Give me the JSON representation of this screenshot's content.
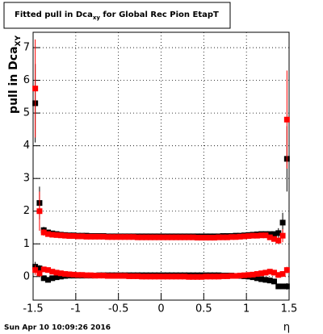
{
  "chart_data": {
    "type": "errorbar",
    "title": [
      "Fitted pull in Dca",
      "xy",
      " for Global Rec Pion EtapT"
    ],
    "y_label": [
      "pull in Dca",
      "XY"
    ],
    "x_label": "η",
    "footer": "Sun Apr 10 10:09:26 2016",
    "xlim": [
      -1.5,
      1.5
    ],
    "ylim": [
      -0.72,
      7.47
    ],
    "xticks": [
      -1.5,
      -1,
      -0.5,
      0,
      0.5,
      1,
      1.5
    ],
    "yticks": [
      0,
      1,
      2,
      3,
      4,
      5,
      6,
      7
    ],
    "grid": true,
    "x": [
      -1.475,
      -1.425,
      -1.375,
      -1.325,
      -1.275,
      -1.225,
      -1.175,
      -1.125,
      -1.075,
      -1.025,
      -0.975,
      -0.925,
      -0.875,
      -0.825,
      -0.775,
      -0.725,
      -0.675,
      -0.625,
      -0.575,
      -0.525,
      -0.475,
      -0.425,
      -0.375,
      -0.325,
      -0.275,
      -0.225,
      -0.175,
      -0.125,
      -0.075,
      -0.025,
      0.025,
      0.075,
      0.125,
      0.175,
      0.225,
      0.275,
      0.325,
      0.375,
      0.425,
      0.475,
      0.525,
      0.575,
      0.625,
      0.675,
      0.725,
      0.775,
      0.825,
      0.875,
      0.925,
      0.975,
      1.025,
      1.075,
      1.125,
      1.175,
      1.225,
      1.275,
      1.325,
      1.375,
      1.425,
      1.475
    ],
    "series": [
      {
        "color": "#000000",
        "values": [
          5.3,
          2.25,
          1.42,
          1.35,
          1.32,
          1.3,
          1.28,
          1.27,
          1.26,
          1.26,
          1.25,
          1.25,
          1.25,
          1.24,
          1.24,
          1.24,
          1.24,
          1.23,
          1.23,
          1.23,
          1.23,
          1.23,
          1.23,
          1.23,
          1.23,
          1.23,
          1.23,
          1.23,
          1.23,
          1.23,
          1.23,
          1.23,
          1.23,
          1.23,
          1.23,
          1.23,
          1.23,
          1.23,
          1.23,
          1.23,
          1.23,
          1.23,
          1.23,
          1.23,
          1.24,
          1.24,
          1.24,
          1.25,
          1.25,
          1.26,
          1.27,
          1.28,
          1.29,
          1.3,
          1.3,
          1.3,
          1.3,
          1.33,
          1.65,
          3.6
        ],
        "errors": [
          1.2,
          0.5,
          0.1,
          0.08,
          0.04,
          0.04,
          0.04,
          0.04,
          0.04,
          0.04,
          0.04,
          0.04,
          0.04,
          0.04,
          0.04,
          0.04,
          0.04,
          0.04,
          0.04,
          0.04,
          0.04,
          0.04,
          0.04,
          0.04,
          0.04,
          0.04,
          0.04,
          0.04,
          0.04,
          0.04,
          0.04,
          0.04,
          0.04,
          0.04,
          0.04,
          0.04,
          0.04,
          0.04,
          0.04,
          0.04,
          0.04,
          0.04,
          0.04,
          0.04,
          0.04,
          0.04,
          0.04,
          0.04,
          0.04,
          0.04,
          0.04,
          0.04,
          0.04,
          0.04,
          0.04,
          0.04,
          0.08,
          0.15,
          0.3,
          1.0
        ]
      },
      {
        "color": "#ff0000",
        "values": [
          5.75,
          2.0,
          1.35,
          1.3,
          1.28,
          1.27,
          1.26,
          1.25,
          1.24,
          1.24,
          1.23,
          1.23,
          1.22,
          1.22,
          1.22,
          1.22,
          1.22,
          1.21,
          1.21,
          1.21,
          1.21,
          1.21,
          1.21,
          1.21,
          1.2,
          1.2,
          1.2,
          1.2,
          1.2,
          1.2,
          1.2,
          1.2,
          1.2,
          1.2,
          1.2,
          1.2,
          1.2,
          1.2,
          1.19,
          1.19,
          1.19,
          1.19,
          1.19,
          1.2,
          1.2,
          1.2,
          1.21,
          1.21,
          1.22,
          1.23,
          1.24,
          1.25,
          1.25,
          1.26,
          1.26,
          1.2,
          1.15,
          1.1,
          1.25,
          4.8
        ],
        "errors": [
          1.5,
          0.6,
          0.1,
          0.08,
          0.04,
          0.04,
          0.04,
          0.04,
          0.04,
          0.04,
          0.04,
          0.04,
          0.04,
          0.04,
          0.04,
          0.04,
          0.04,
          0.04,
          0.04,
          0.04,
          0.04,
          0.04,
          0.04,
          0.04,
          0.04,
          0.04,
          0.04,
          0.04,
          0.04,
          0.04,
          0.04,
          0.04,
          0.04,
          0.04,
          0.04,
          0.04,
          0.04,
          0.04,
          0.04,
          0.04,
          0.04,
          0.04,
          0.04,
          0.04,
          0.04,
          0.04,
          0.04,
          0.04,
          0.04,
          0.04,
          0.04,
          0.04,
          0.04,
          0.04,
          0.04,
          0.04,
          0.08,
          0.1,
          0.2,
          1.5
        ]
      },
      {
        "color": "#000000",
        "values": [
          0.3,
          0.25,
          -0.05,
          -0.1,
          -0.05,
          -0.02,
          0,
          0.02,
          0.03,
          0.03,
          0.03,
          0.03,
          0.03,
          0.03,
          0.03,
          0.04,
          0.04,
          0.04,
          0.04,
          0.04,
          0.04,
          0.04,
          0.04,
          0.04,
          0.04,
          0.04,
          0.04,
          0.04,
          0.04,
          0.04,
          0.04,
          0.04,
          0.04,
          0.04,
          0.04,
          0.04,
          0.04,
          0.04,
          0.04,
          0.04,
          0.04,
          0.04,
          0.04,
          0.04,
          0.03,
          0.03,
          0.03,
          0.02,
          0.02,
          0.01,
          0,
          -0.02,
          -0.05,
          -0.08,
          -0.1,
          -0.12,
          -0.15,
          -0.3,
          -0.3,
          -0.3
        ],
        "errors": [
          0.15,
          0.1,
          0.05,
          0.04,
          0.03,
          0.03,
          0.03,
          0.03,
          0.03,
          0.03,
          0.03,
          0.03,
          0.03,
          0.03,
          0.03,
          0.03,
          0.03,
          0.03,
          0.03,
          0.03,
          0.03,
          0.03,
          0.03,
          0.03,
          0.03,
          0.03,
          0.03,
          0.03,
          0.03,
          0.03,
          0.03,
          0.03,
          0.03,
          0.03,
          0.03,
          0.03,
          0.03,
          0.03,
          0.03,
          0.03,
          0.03,
          0.03,
          0.03,
          0.03,
          0.03,
          0.03,
          0.03,
          0.03,
          0.03,
          0.03,
          0.03,
          0.03,
          0.03,
          0.03,
          0.03,
          0.03,
          0.04,
          0.05,
          0.08,
          0.1
        ]
      },
      {
        "color": "#ff0000",
        "values": [
          0.2,
          0.1,
          0.22,
          0.2,
          0.15,
          0.12,
          0.1,
          0.08,
          0.07,
          0.06,
          0.05,
          0.05,
          0.04,
          0.04,
          0.03,
          0.03,
          0.03,
          0.02,
          0.02,
          0.02,
          0.02,
          0.02,
          0.01,
          0.01,
          0.01,
          0,
          0,
          0,
          0,
          0,
          0,
          0,
          0,
          0,
          0,
          0,
          -0.01,
          -0.01,
          -0.01,
          -0.01,
          0,
          0,
          0,
          0,
          0.01,
          0.01,
          0.02,
          0.02,
          0.03,
          0.04,
          0.05,
          0.06,
          0.08,
          0.1,
          0.12,
          0.15,
          0.12,
          0.05,
          0.08,
          0.2
        ],
        "errors": [
          0.15,
          0.1,
          0.05,
          0.04,
          0.03,
          0.03,
          0.03,
          0.03,
          0.03,
          0.03,
          0.03,
          0.03,
          0.03,
          0.03,
          0.03,
          0.03,
          0.03,
          0.03,
          0.03,
          0.03,
          0.03,
          0.03,
          0.03,
          0.03,
          0.03,
          0.03,
          0.03,
          0.03,
          0.03,
          0.03,
          0.03,
          0.03,
          0.03,
          0.03,
          0.03,
          0.03,
          0.03,
          0.03,
          0.03,
          0.03,
          0.03,
          0.03,
          0.03,
          0.03,
          0.03,
          0.03,
          0.03,
          0.03,
          0.03,
          0.03,
          0.03,
          0.03,
          0.03,
          0.03,
          0.03,
          0.03,
          0.04,
          0.05,
          0.08,
          0.1
        ]
      }
    ]
  }
}
